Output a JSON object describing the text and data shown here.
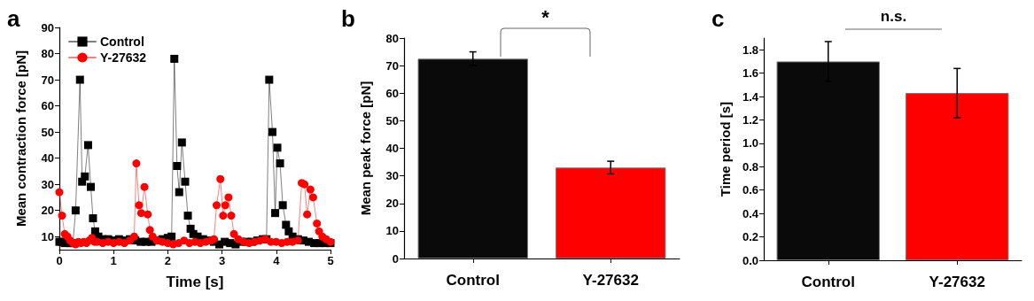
{
  "chart_data": [
    {
      "type": "line",
      "annotations": [
        "a"
      ],
      "xlabel": "Time [s]",
      "ylabel": "Mean contraction force [pN]",
      "xlim": [
        0,
        5
      ],
      "xticks": [
        0,
        1,
        2,
        3,
        4,
        5
      ],
      "ylim": [
        5,
        90
      ],
      "yticks": [
        10,
        20,
        30,
        40,
        50,
        60,
        70,
        80,
        90
      ],
      "legend": "top left",
      "grid": false,
      "line_style": "solid",
      "series": [
        {
          "name": "Control",
          "color": "#000000",
          "marker": "square",
          "x": [
            0,
            0.05,
            0.1,
            0.15,
            0.2,
            0.25,
            0.3,
            0.38,
            0.42,
            0.47,
            0.53,
            0.58,
            0.62,
            0.66,
            0.72,
            0.8,
            0.9,
            1.0,
            1.1,
            1.2,
            1.3,
            1.4,
            1.5,
            1.6,
            1.7,
            1.8,
            1.9,
            2.0,
            2.07,
            2.12,
            2.17,
            2.21,
            2.26,
            2.32,
            2.37,
            2.42,
            2.47,
            2.55,
            2.65,
            2.75,
            2.85,
            2.95,
            3.05,
            3.15,
            3.25,
            3.35,
            3.45,
            3.55,
            3.65,
            3.75,
            3.82,
            3.87,
            3.93,
            3.98,
            4.02,
            4.07,
            4.12,
            4.18,
            4.23,
            4.3,
            4.4,
            4.5,
            4.6,
            4.7,
            4.8,
            4.9,
            5.0
          ],
          "values": [
            8,
            8,
            7.5,
            8,
            7.5,
            7.5,
            20,
            70,
            31,
            33,
            45,
            29,
            17,
            12,
            10,
            9,
            9,
            8.5,
            9,
            8.5,
            9,
            8.5,
            8,
            8,
            8,
            8.5,
            9,
            9.5,
            10,
            78,
            37,
            27,
            46,
            31,
            18,
            13,
            11,
            10,
            9,
            8.5,
            8,
            7,
            8,
            7.5,
            7,
            8,
            8,
            8,
            8.5,
            9,
            9,
            70,
            50,
            19,
            44,
            38,
            22,
            14.5,
            12,
            10,
            9,
            8.5,
            8,
            7.5,
            7.5,
            7.5,
            7.5
          ]
        },
        {
          "name": "Y-27632",
          "color": "#ff0000",
          "marker": "circle",
          "x": [
            0,
            0.05,
            0.1,
            0.15,
            0.2,
            0.25,
            0.3,
            0.35,
            0.4,
            0.45,
            0.5,
            0.55,
            0.6,
            0.65,
            0.7,
            0.8,
            0.9,
            1.0,
            1.1,
            1.2,
            1.3,
            1.38,
            1.42,
            1.47,
            1.51,
            1.57,
            1.63,
            1.67,
            1.72,
            1.8,
            1.9,
            2.0,
            2.1,
            2.2,
            2.3,
            2.4,
            2.5,
            2.6,
            2.7,
            2.8,
            2.85,
            2.9,
            2.97,
            3.02,
            3.06,
            3.12,
            3.17,
            3.22,
            3.3,
            3.4,
            3.5,
            3.6,
            3.7,
            3.8,
            3.9,
            4.0,
            4.1,
            4.2,
            4.3,
            4.4,
            4.47,
            4.52,
            4.57,
            4.63,
            4.68,
            4.75,
            4.79,
            4.85,
            4.92,
            5.0
          ],
          "values": [
            27,
            18,
            11,
            10,
            8.5,
            7.5,
            7,
            8,
            7.5,
            8,
            7.5,
            8.5,
            9.5,
            8,
            8,
            7.5,
            8,
            7.5,
            8,
            7.5,
            8.5,
            10,
            38,
            22,
            19,
            29,
            18.5,
            12.5,
            10,
            8.5,
            8,
            7.5,
            7,
            7.5,
            8.5,
            7.5,
            8,
            7.5,
            8,
            8.5,
            9,
            22,
            32,
            18,
            22,
            25,
            18,
            11,
            9,
            8,
            7.5,
            8,
            8.5,
            9,
            8,
            8,
            7.5,
            8,
            8,
            8.5,
            30.5,
            30,
            18.5,
            28,
            25,
            15,
            12,
            10,
            9,
            8
          ]
        }
      ]
    },
    {
      "type": "bar",
      "annotations": [
        "b",
        "*"
      ],
      "ylabel": "Mean peak force [pN]",
      "categories": [
        "Control",
        "Y-27632"
      ],
      "values": [
        72.5,
        33
      ],
      "colors": [
        "#0a0a0a",
        "#ff0000"
      ],
      "errors": [
        2.5,
        2.3
      ],
      "ylim": [
        0,
        80
      ],
      "yticks": [
        0,
        10,
        20,
        30,
        40,
        50,
        60,
        70,
        80
      ],
      "grid": false,
      "legend": false
    },
    {
      "type": "bar",
      "annotations": [
        "c",
        "n.s."
      ],
      "ylabel": "Time period [s]",
      "categories": [
        "Control",
        "Y-27632"
      ],
      "values": [
        1.7,
        1.43
      ],
      "colors": [
        "#0a0a0a",
        "#ff0000"
      ],
      "errors": [
        0.17,
        0.21
      ],
      "ylim": [
        0,
        1.9
      ],
      "yticks": [
        {
          "value": 0,
          "label": "0.0"
        },
        {
          "value": 0.2,
          "label": "0.2"
        },
        {
          "value": 0.4,
          "label": "0.4"
        },
        {
          "value": 0.6,
          "label": "0.6"
        },
        {
          "value": 0.8,
          "label": "0.8"
        },
        {
          "value": 1,
          "label": "1.0"
        },
        {
          "value": 1.2,
          "label": "1.2"
        },
        {
          "value": 1.4,
          "label": "1.4"
        },
        {
          "value": 1.6,
          "label": "1.6"
        },
        {
          "value": 1.8,
          "label": "1.8"
        }
      ],
      "grid": false,
      "legend": false
    }
  ]
}
